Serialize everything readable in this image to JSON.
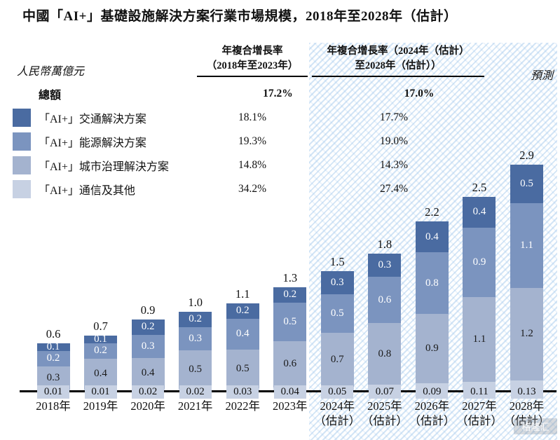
{
  "title": "中國「AI+」基礎設施解決方案行業市場規模，2018年至2028年（估計）",
  "unit_label": "人民幣萬億元",
  "forecast_label": "預測",
  "watermark": "格隆汇",
  "table": {
    "columns": [
      {
        "line1": "年複合增長率",
        "line2": "（2018年至2023年）"
      },
      {
        "line1": "年複合增長率（2024年（估計）",
        "line2": "至2028年（估計））"
      }
    ],
    "rows": [
      {
        "label": "總額",
        "swatch": null,
        "bold": true,
        "values": [
          "17.2%",
          "17.0%"
        ]
      },
      {
        "label": "「AI+」交通解決方案",
        "swatch": "#4a6ba1",
        "bold": false,
        "values": [
          "18.1%",
          "17.7%"
        ]
      },
      {
        "label": "「AI+」能源解決方案",
        "swatch": "#7b94bf",
        "bold": false,
        "values": [
          "19.3%",
          "19.0%"
        ]
      },
      {
        "label": "「AI+」城市治理解決方案",
        "swatch": "#a4b3cf",
        "bold": false,
        "values": [
          "14.8%",
          "14.3%"
        ]
      },
      {
        "label": "「AI+」通信及其他",
        "swatch": "#c7d1e3",
        "bold": false,
        "values": [
          "34.2%",
          "27.4%"
        ]
      }
    ]
  },
  "chart_data": {
    "type": "bar",
    "subtype": "stacked",
    "title": "中國「AI+」基礎設施解決方案行業市場規模，2018年至2028年（估計）",
    "ylabel": "人民幣萬億元",
    "xlabel": "",
    "grid": false,
    "forecast_from_index": 6,
    "categories": [
      {
        "label": "2018年",
        "sublabel": ""
      },
      {
        "label": "2019年",
        "sublabel": ""
      },
      {
        "label": "2020年",
        "sublabel": ""
      },
      {
        "label": "2021年",
        "sublabel": ""
      },
      {
        "label": "2022年",
        "sublabel": ""
      },
      {
        "label": "2023年",
        "sublabel": ""
      },
      {
        "label": "2024年",
        "sublabel": "（估計）"
      },
      {
        "label": "2025年",
        "sublabel": "（估計）"
      },
      {
        "label": "2026年",
        "sublabel": "（估計）"
      },
      {
        "label": "2027年",
        "sublabel": "（估計）"
      },
      {
        "label": "2028年",
        "sublabel": "（估計）"
      }
    ],
    "totals": [
      "0.6",
      "0.7",
      "0.9",
      "1.0",
      "1.1",
      "1.3",
      "1.5",
      "1.8",
      "2.2",
      "2.5",
      "2.9"
    ],
    "series": [
      {
        "id": "transport",
        "name": "「AI+」交通解決方案",
        "color": "#4a6ba1",
        "label_color": "#ffffff",
        "on_axis_box": false,
        "values": [
          "0.1",
          "0.1",
          "0.2",
          "0.2",
          "0.2",
          "0.2",
          "0.3",
          "0.3",
          "0.4",
          "0.4",
          "0.5"
        ]
      },
      {
        "id": "energy",
        "name": "「AI+」能源解決方案",
        "color": "#7b94bf",
        "label_color": "#ffffff",
        "on_axis_box": false,
        "values": [
          "0.2",
          "0.2",
          "0.3",
          "0.3",
          "0.4",
          "0.5",
          "0.5",
          "0.6",
          "0.8",
          "0.9",
          "1.1"
        ]
      },
      {
        "id": "city-governance",
        "name": "「AI+」城市治理解決方案",
        "color": "#a4b3cf",
        "label_color": "#1a1a1a",
        "on_axis_box": false,
        "values": [
          "0.3",
          "0.4",
          "0.4",
          "0.5",
          "0.5",
          "0.6",
          "0.7",
          "0.8",
          "0.9",
          "1.1",
          "1.2"
        ]
      },
      {
        "id": "communications-others",
        "name": "「AI+」通信及其他",
        "color": "#c7d1e3",
        "label_color": "#1a1a1a",
        "on_axis_box": true,
        "values": [
          "0.01",
          "0.01",
          "0.02",
          "0.02",
          "0.03",
          "0.04",
          "0.05",
          "0.07",
          "0.09",
          "0.11",
          "0.13"
        ]
      }
    ]
  }
}
